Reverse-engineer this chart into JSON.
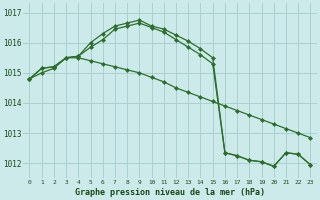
{
  "x": [
    0,
    1,
    2,
    3,
    4,
    5,
    6,
    7,
    8,
    9,
    10,
    11,
    12,
    13,
    14,
    15,
    16,
    17,
    18,
    19,
    20,
    21,
    22,
    23
  ],
  "line1": [
    1014.8,
    1015.0,
    1015.15,
    1015.5,
    1015.5,
    1015.4,
    1015.3,
    1015.2,
    1015.1,
    1015.0,
    1014.85,
    1014.7,
    1014.5,
    1014.35,
    1014.2,
    1014.05,
    1013.9,
    1013.75,
    1013.6,
    1013.45,
    1013.3,
    1013.15,
    1013.0,
    1012.85
  ],
  "line2": [
    1014.8,
    1015.15,
    1015.2,
    1015.5,
    1015.55,
    1016.0,
    1016.3,
    1016.55,
    1016.65,
    1016.75,
    1016.55,
    1016.45,
    1016.25,
    1016.05,
    1015.8,
    1015.5,
    1012.35,
    1012.25,
    1012.1,
    1012.05,
    1011.9,
    1012.35,
    1012.3,
    1011.95
  ],
  "line3": [
    1014.8,
    1015.15,
    1015.2,
    1015.5,
    1015.55,
    1015.85,
    1016.1,
    1016.45,
    1016.55,
    1016.65,
    1016.5,
    1016.35,
    1016.1,
    1015.85,
    1015.6,
    1015.3,
    1012.35,
    1012.25,
    1012.1,
    1012.05,
    1011.9,
    1012.35,
    1012.3,
    1011.95
  ],
  "ylim": [
    1011.5,
    1017.3
  ],
  "yticks": [
    1012,
    1013,
    1014,
    1015,
    1016,
    1017
  ],
  "xticks": [
    0,
    1,
    2,
    3,
    4,
    5,
    6,
    7,
    8,
    9,
    10,
    11,
    12,
    13,
    14,
    15,
    16,
    17,
    18,
    19,
    20,
    21,
    22,
    23
  ],
  "line_color": "#2d6e2d",
  "bg_color": "#cceaea",
  "grid_color": "#aad0d0",
  "xlabel": "Graphe pression niveau de la mer (hPa)",
  "xlabel_color": "#1a4a1a",
  "tick_color": "#1a4a1a",
  "marker": "D",
  "markersize": 2.0,
  "linewidth": 0.9
}
